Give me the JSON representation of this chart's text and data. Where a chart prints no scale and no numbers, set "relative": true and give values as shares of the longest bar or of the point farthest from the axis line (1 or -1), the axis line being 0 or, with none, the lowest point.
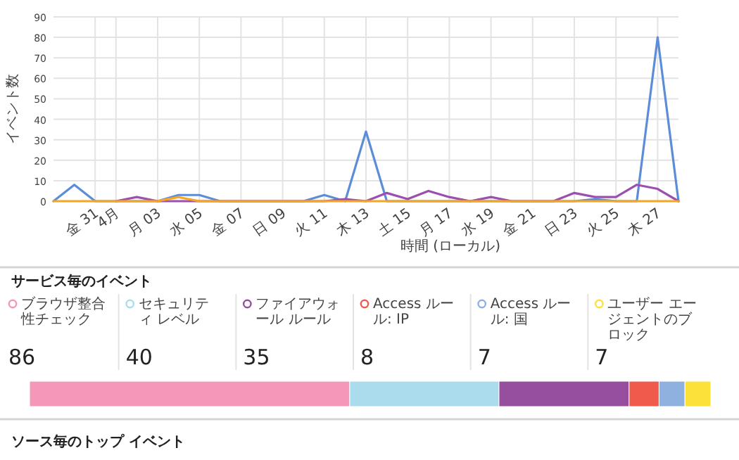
{
  "chart_data": [
    {
      "type": "line",
      "xlabel": "時間 (ローカル)",
      "ylabel": "イベント数",
      "x": [
        "--03-29",
        "--03-30",
        "--03-31",
        "--04-01",
        "--04-02",
        "--04-03",
        "--04-04",
        "--04-05",
        "--04-06",
        "--04-07",
        "--04-08",
        "--04-09",
        "--04-10",
        "--04-11",
        "--04-12",
        "--04-13",
        "--04-14",
        "--04-15",
        "--04-16",
        "--04-17",
        "--04-18",
        "--04-19",
        "--04-20",
        "--04-21",
        "--04-22",
        "--04-23",
        "--04-24",
        "--04-25",
        "--04-26",
        "--04-27",
        "--04-28"
      ],
      "series": [
        {
          "color": "#5b8dd9",
          "values": [
            0,
            8,
            0,
            0,
            0,
            0,
            3,
            3,
            0,
            0,
            0,
            0,
            0,
            3,
            0,
            34,
            0,
            0,
            0,
            0,
            0,
            0,
            0,
            0,
            0,
            0,
            1,
            0,
            0,
            80,
            0
          ]
        },
        {
          "color": "#9b4fb0",
          "values": [
            null,
            null,
            null,
            0,
            2,
            0,
            0,
            0,
            0,
            0,
            0,
            0,
            0,
            0,
            1,
            0,
            4,
            1,
            5,
            2,
            0,
            2,
            0,
            0,
            0,
            4,
            2,
            2,
            8,
            6,
            0
          ]
        },
        {
          "color": "#f5a623",
          "values": [
            0,
            0,
            0,
            0,
            0,
            0,
            2,
            0,
            0,
            0,
            0,
            0,
            0,
            0,
            0,
            0,
            0,
            0,
            0,
            0,
            0,
            0,
            0,
            0,
            0,
            0,
            0,
            0,
            0,
            0,
            0
          ]
        }
      ],
      "xlim": [
        "--03-29",
        "--04-28"
      ],
      "xticks": [
        {
          "value": "--03-31",
          "label": "金 31"
        },
        {
          "value": "--04-01",
          "label": "4月"
        },
        {
          "value": "--04-03",
          "label": "月 03"
        },
        {
          "value": "--04-05",
          "label": "水 05"
        },
        {
          "value": "--04-07",
          "label": "金 07"
        },
        {
          "value": "--04-09",
          "label": "日 09"
        },
        {
          "value": "--04-11",
          "label": "火 11"
        },
        {
          "value": "--04-13",
          "label": "木 13"
        },
        {
          "value": "--04-15",
          "label": "土 15"
        },
        {
          "value": "--04-17",
          "label": "月 17"
        },
        {
          "value": "--04-19",
          "label": "水 19"
        },
        {
          "value": "--04-21",
          "label": "金 21"
        },
        {
          "value": "--04-23",
          "label": "日 23"
        },
        {
          "value": "--04-25",
          "label": "火 25"
        },
        {
          "value": "--04-27",
          "label": "木 27"
        }
      ],
      "ylim": [
        0,
        90
      ],
      "yticks": [
        0,
        10,
        20,
        30,
        40,
        50,
        60,
        70,
        80,
        90
      ],
      "grid": true,
      "line_style": "solid"
    },
    {
      "type": "other",
      "title": "サービス毎のイベント",
      "categories": [
        "ブラウザ整合性チェック",
        "セキュリティ レベル",
        "ファイアウォール ルール",
        "Access ルール: IP",
        "Access ルール: 国",
        "ユーザー エージェントのブロック"
      ],
      "values": [
        86,
        40,
        35,
        8,
        7,
        7
      ],
      "colors": [
        "#f497b8",
        "#aadcee",
        "#954f9e",
        "#ef5a4c",
        "#8eb1e0",
        "#fbe13a"
      ],
      "data_labels": true
    },
    {
      "type": "bar",
      "orientation": "horizontal",
      "stacked": true,
      "relative": true,
      "categories": [
        null
      ],
      "series": [
        {
          "color": "#f497b8",
          "values": [
            0.47
          ]
        },
        {
          "color": "#aadcee",
          "values": [
            0.219
          ]
        },
        {
          "color": "#954f9e",
          "values": [
            0.191
          ]
        },
        {
          "color": "#ef5a4c",
          "values": [
            0.044
          ]
        },
        {
          "color": "#8eb1e0",
          "values": [
            0.038
          ]
        },
        {
          "color": "#fbe13a",
          "values": [
            0.038
          ]
        }
      ],
      "annotations": [
        "ソース毎のトップ イベント"
      ]
    }
  ]
}
